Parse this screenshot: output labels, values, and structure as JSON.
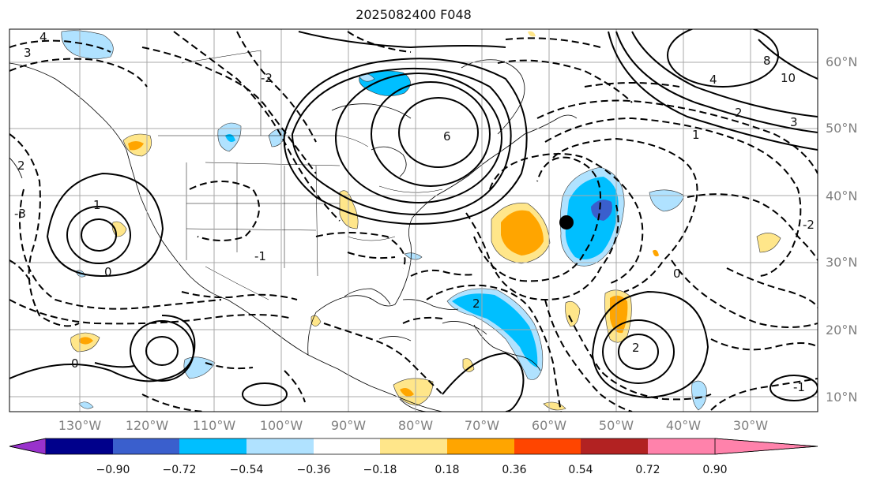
{
  "title": "2025082400 F048",
  "map": {
    "lat_labels": [
      "60°N",
      "50°N",
      "40°N",
      "30°N",
      "20°N",
      "10°N"
    ],
    "lon_labels": [
      "130°W",
      "120°W",
      "110°W",
      "100°W",
      "90°W",
      "80°W",
      "70°W",
      "60°W",
      "50°W",
      "40°W",
      "30°W"
    ],
    "gridlines": true,
    "marker": "black-dot",
    "contour_labels": [
      "4",
      "3",
      "2",
      "1",
      "0",
      "-1",
      "-2",
      "-3",
      "6",
      "8",
      "10",
      "1",
      "2",
      "0",
      "-2",
      "4",
      "2",
      "0",
      "-1",
      "2",
      "3"
    ]
  },
  "colorbar": {
    "ticks": [
      "−0.90",
      "−0.72",
      "−0.54",
      "−0.36",
      "−0.18",
      "0.18",
      "0.36",
      "0.54",
      "0.72",
      "0.90"
    ],
    "colors": [
      "#9932cc",
      "#00008b",
      "#3a5fcd",
      "#00bfff",
      "#b0e2ff",
      "#ffffff",
      "#ffe68a",
      "#ffa500",
      "#ff4500",
      "#b22222",
      "#ff82ab"
    ]
  }
}
